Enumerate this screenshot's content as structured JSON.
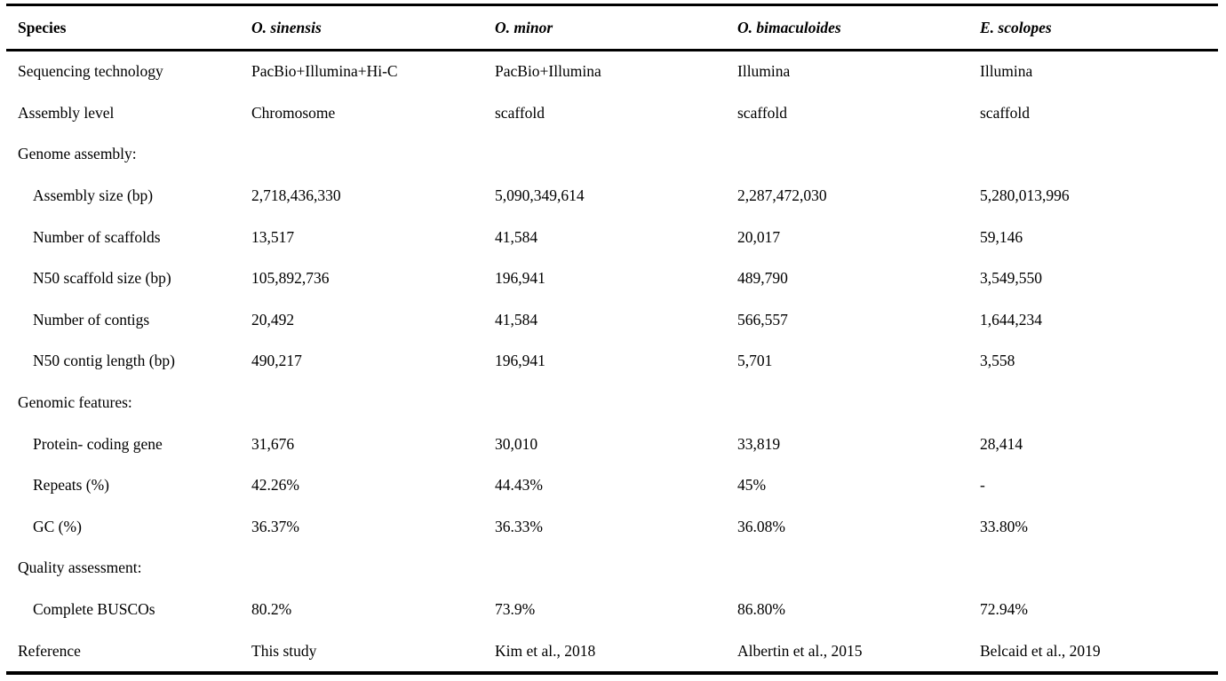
{
  "table": {
    "header": {
      "label": "Species",
      "species": [
        "O. sinensis",
        "O. minor",
        "O. bimaculoides",
        "E. scolopes"
      ]
    },
    "rows": [
      {
        "label": "Sequencing technology",
        "indent": false,
        "section": false,
        "values": [
          "PacBio+Illumina+Hi-C",
          "PacBio+Illumina",
          "Illumina",
          "Illumina"
        ]
      },
      {
        "label": "Assembly level",
        "indent": false,
        "section": false,
        "values": [
          "Chromosome",
          "scaffold",
          "scaffold",
          "scaffold"
        ]
      },
      {
        "label": "Genome assembly:",
        "indent": false,
        "section": true,
        "values": [
          "",
          "",
          "",
          ""
        ]
      },
      {
        "label": "Assembly size (bp)",
        "indent": true,
        "section": false,
        "values": [
          "2,718,436,330",
          "5,090,349,614",
          "2,287,472,030",
          "5,280,013,996"
        ]
      },
      {
        "label": "Number of scaffolds",
        "indent": true,
        "section": false,
        "values": [
          "13,517",
          "41,584",
          "20,017",
          "59,146"
        ]
      },
      {
        "label": "N50 scaffold size (bp)",
        "indent": true,
        "section": false,
        "values": [
          "105,892,736",
          "196,941",
          "489,790",
          "3,549,550"
        ]
      },
      {
        "label": "Number of contigs",
        "indent": true,
        "section": false,
        "values": [
          "20,492",
          "41,584",
          "566,557",
          "1,644,234"
        ]
      },
      {
        "label": "N50 contig length (bp)",
        "indent": true,
        "section": false,
        "values": [
          "490,217",
          "196,941",
          "5,701",
          "3,558"
        ]
      },
      {
        "label": "Genomic features:",
        "indent": false,
        "section": true,
        "values": [
          "",
          "",
          "",
          ""
        ]
      },
      {
        "label": "Protein- coding gene",
        "indent": true,
        "section": false,
        "values": [
          "31,676",
          "30,010",
          "33,819",
          "28,414"
        ]
      },
      {
        "label": "Repeats (%)",
        "indent": true,
        "section": false,
        "values": [
          "42.26%",
          "44.43%",
          "45%",
          "-"
        ]
      },
      {
        "label": "GC (%)",
        "indent": true,
        "section": false,
        "values": [
          "36.37%",
          "36.33%",
          "36.08%",
          "33.80%"
        ]
      },
      {
        "label": "Quality assessment:",
        "indent": false,
        "section": true,
        "values": [
          "",
          "",
          "",
          ""
        ]
      },
      {
        "label": "Complete BUSCOs",
        "indent": true,
        "section": false,
        "values": [
          "80.2%",
          "73.9%",
          "86.80%",
          "72.94%"
        ]
      },
      {
        "label": "Reference",
        "indent": false,
        "section": false,
        "values": [
          "This study",
          "Kim et al., 2018",
          "Albertin et al., 2015",
          "Belcaid et al., 2019"
        ]
      }
    ]
  }
}
